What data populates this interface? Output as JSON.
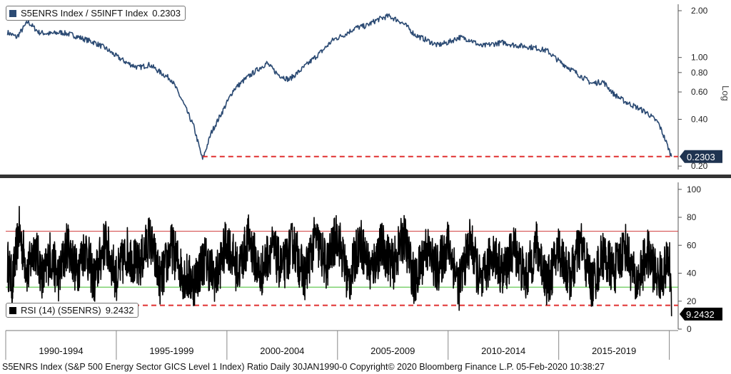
{
  "chart_data": [
    {
      "type": "line",
      "panel": "top",
      "legend_label": "S5ENRS Index / S5INFT Index",
      "legend_value": "0.2303",
      "y_scale": "log",
      "ylim": [
        0.19,
        2.2
      ],
      "yticks": [
        "2.00",
        "1.00",
        "0.80",
        "0.60",
        "0.40",
        "0.20"
      ],
      "y_axis_note": "Log",
      "last_value_label": "0.2303",
      "series": [
        {
          "color": "#2b4a73",
          "x": [
            1990.08,
            1990.5,
            1991.0,
            1991.5,
            1992.0,
            1992.5,
            1993.0,
            1993.5,
            1994.0,
            1994.5,
            1995.0,
            1995.5,
            1996.0,
            1996.5,
            1997.0,
            1997.5,
            1998.0,
            1998.5,
            1998.9,
            1999.3,
            1999.8,
            2000.3,
            2000.8,
            2001.3,
            2001.8,
            2002.3,
            2002.8,
            2003.3,
            2003.8,
            2004.3,
            2004.8,
            2005.3,
            2005.8,
            2006.3,
            2006.8,
            2007.3,
            2007.8,
            2008.1,
            2008.5,
            2009.0,
            2009.5,
            2010.0,
            2010.5,
            2011.0,
            2011.5,
            2012.0,
            2012.5,
            2013.0,
            2013.5,
            2014.0,
            2014.5,
            2015.0,
            2015.5,
            2016.0,
            2016.5,
            2017.0,
            2017.5,
            2018.0,
            2018.5,
            2019.0,
            2019.5,
            2019.8,
            2020.1
          ],
          "y": [
            1.45,
            1.35,
            1.7,
            1.45,
            1.42,
            1.45,
            1.4,
            1.32,
            1.25,
            1.15,
            1.02,
            0.92,
            0.86,
            0.9,
            0.8,
            0.72,
            0.52,
            0.36,
            0.22,
            0.33,
            0.45,
            0.62,
            0.72,
            0.82,
            0.92,
            0.78,
            0.72,
            0.82,
            0.95,
            1.1,
            1.3,
            1.4,
            1.55,
            1.6,
            1.75,
            1.85,
            1.72,
            1.6,
            1.4,
            1.3,
            1.2,
            1.25,
            1.35,
            1.3,
            1.18,
            1.22,
            1.25,
            1.2,
            1.18,
            1.15,
            1.1,
            0.95,
            0.85,
            0.76,
            0.68,
            0.7,
            0.58,
            0.52,
            0.48,
            0.44,
            0.38,
            0.3,
            0.2303
          ]
        }
      ],
      "reference_lines": [
        {
          "style": "dashed",
          "color": "#e03030",
          "y": 0.2303,
          "x_from": 1998.9,
          "x_to": 2020.4
        }
      ]
    },
    {
      "type": "line",
      "panel": "bottom",
      "legend_label": "RSI (14) (S5ENRS)",
      "legend_value": "9.2432",
      "ylim": [
        0,
        105
      ],
      "yticks": [
        "100",
        "80",
        "60",
        "40",
        "20",
        "0"
      ],
      "last_value_label": "9.2432",
      "series": [
        {
          "color": "#000000",
          "x": [
            1990.08,
            1990.3,
            1990.6,
            1991.0,
            1991.3,
            1991.7,
            1992.0,
            1992.4,
            1992.8,
            1993.2,
            1993.6,
            1994.0,
            1994.5,
            1995.0,
            1995.5,
            1996.0,
            1996.5,
            1997.0,
            1997.5,
            1998.0,
            1998.5,
            1999.0,
            1999.5,
            2000.0,
            2000.5,
            2001.0,
            2001.5,
            2002.0,
            2002.5,
            2003.0,
            2003.5,
            2004.0,
            2004.5,
            2005.0,
            2005.5,
            2006.0,
            2006.5,
            2007.0,
            2007.5,
            2008.0,
            2008.5,
            2009.0,
            2009.5,
            2010.0,
            2010.5,
            2011.0,
            2011.5,
            2012.0,
            2012.5,
            2013.0,
            2013.5,
            2014.0,
            2014.5,
            2015.0,
            2015.5,
            2016.0,
            2016.5,
            2017.0,
            2017.5,
            2018.0,
            2018.5,
            2019.0,
            2019.5,
            2020.0,
            2020.1
          ],
          "y": [
            50,
            22,
            92,
            35,
            72,
            28,
            60,
            30,
            75,
            38,
            70,
            25,
            78,
            30,
            65,
            42,
            82,
            25,
            70,
            35,
            24,
            55,
            28,
            78,
            38,
            82,
            32,
            70,
            40,
            75,
            30,
            82,
            45,
            88,
            22,
            80,
            38,
            72,
            45,
            85,
            22,
            70,
            40,
            75,
            20,
            78,
            18,
            65,
            35,
            70,
            28,
            72,
            22,
            68,
            30,
            75,
            20,
            60,
            38,
            72,
            20,
            62,
            28,
            50,
            9.2432
          ]
        }
      ],
      "reference_lines": [
        {
          "style": "solid",
          "color": "#d03b3b",
          "y": 70
        },
        {
          "style": "solid",
          "color": "#3dbb2a",
          "y": 30
        },
        {
          "style": "dashed",
          "color": "#e03030",
          "y": 17
        }
      ]
    }
  ],
  "x_axis": {
    "period_labels": [
      "1990-1994",
      "1995-1999",
      "2000-2004",
      "2005-2009",
      "2010-2014",
      "2015-2019"
    ],
    "period_starts": [
      1990,
      1995,
      2000,
      2005,
      2010,
      2015,
      2020
    ],
    "xlim": [
      1990.0,
      2020.4
    ]
  },
  "footer": {
    "text": "S5ENRS Index (S&P 500 Energy Sector GICS Level 1 Index) Ratio  Daily 30JAN1990-0 Copyright© 2020 Bloomberg Finance L.P. 05-Feb-2020 10:38:27"
  },
  "colors": {
    "top_line": "#2b4a73",
    "rsi_line": "#000000",
    "upper_band": "#d03b3b",
    "lower_band": "#3dbb2a",
    "dashed": "#e03030",
    "divider": "#333333"
  }
}
